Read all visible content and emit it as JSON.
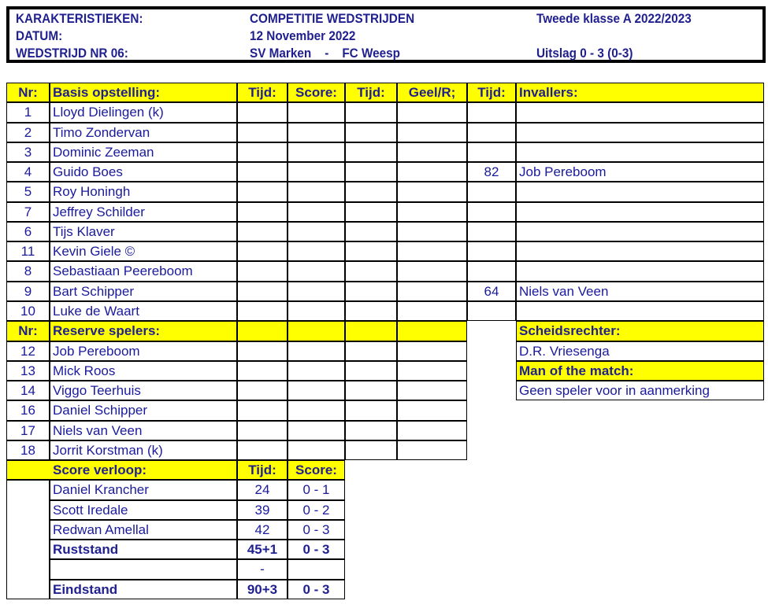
{
  "header": {
    "label1": "KARAKTERISTIEKEN:",
    "value1": "COMPETITIE WEDSTRIJDEN",
    "extra1": "Tweede klasse A  2022/2023",
    "label2": "DATUM:",
    "value2": "12 November  2022",
    "label3": "WEDSTRIJD NR 06:",
    "value3": "SV Marken    -    FC Weesp",
    "extra3": "Uitslag 0 - 3 (0-3)"
  },
  "lineup_headers": [
    "Nr:",
    "Basis opstelling:",
    "Tijd:",
    "Score:",
    "Tijd:",
    "Geel/R;",
    "Tijd:",
    "Invallers:"
  ],
  "starters": [
    {
      "nr": "1",
      "name": "Lloyd Dielingen (k)",
      "sub_time": "",
      "sub": ""
    },
    {
      "nr": "2",
      "name": "Timo Zondervan",
      "sub_time": "",
      "sub": ""
    },
    {
      "nr": "3",
      "name": "Dominic Zeeman",
      "sub_time": "",
      "sub": ""
    },
    {
      "nr": "4",
      "name": "Guido Boes",
      "sub_time": "82",
      "sub": "Job Pereboom"
    },
    {
      "nr": "5",
      "name": "Roy Honingh",
      "sub_time": "",
      "sub": ""
    },
    {
      "nr": "7",
      "name": "Jeffrey Schilder",
      "sub_time": "",
      "sub": ""
    },
    {
      "nr": "6",
      "name": "Tijs Klaver",
      "sub_time": "",
      "sub": ""
    },
    {
      "nr": "11",
      "name": "Kevin Giele ©",
      "sub_time": "",
      "sub": ""
    },
    {
      "nr": "8",
      "name": "Sebastiaan Peereboom",
      "sub_time": "",
      "sub": ""
    },
    {
      "nr": "9",
      "name": "Bart Schipper",
      "sub_time": "64",
      "sub": "Niels van Veen"
    },
    {
      "nr": "10",
      "name": "Luke de Waart",
      "sub_time": "",
      "sub": ""
    }
  ],
  "reserve_headers": [
    "Nr:",
    "Reserve spelers:"
  ],
  "reserves": [
    {
      "nr": "12",
      "name": "Job Pereboom"
    },
    {
      "nr": "13",
      "name": "Mick Roos"
    },
    {
      "nr": "14",
      "name": "Viggo Teerhuis"
    },
    {
      "nr": "16",
      "name": "Daniel Schipper"
    },
    {
      "nr": "17",
      "name": "Niels van Veen"
    },
    {
      "nr": "18",
      "name": "Jorrit Korstman (k)"
    }
  ],
  "referee": {
    "label": "Scheidsrechter:",
    "value": "D.R. Vriesenga"
  },
  "motm": {
    "label": "Man of the match:",
    "value": "Geen speler voor in aanmerking"
  },
  "score_headers": [
    "Score verloop:",
    "Tijd:",
    "Score:"
  ],
  "goals": [
    {
      "name": "Daniel Krancher",
      "time": "24",
      "score": "0 - 1",
      "bold": false
    },
    {
      "name": "Scott Iredale",
      "time": "39",
      "score": "0 - 2",
      "bold": false
    },
    {
      "name": "Redwan Amellal",
      "time": "42",
      "score": "0 - 3",
      "bold": false
    },
    {
      "name": "Ruststand",
      "time": "45+1",
      "score": "0 - 3",
      "bold": true
    },
    {
      "name": "",
      "time": "-",
      "score": "",
      "bold": false
    },
    {
      "name": "Eindstand",
      "time": "90+3",
      "score": "0 - 3",
      "bold": true
    }
  ],
  "colors": {
    "header_fill": "#ffff00",
    "text": "#1a1a9c"
  }
}
